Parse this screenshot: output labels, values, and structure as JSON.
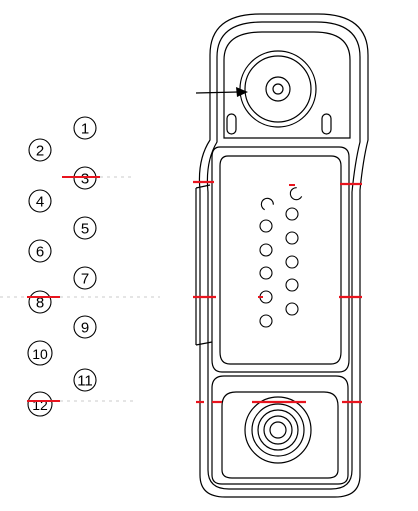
{
  "pin_labels": [
    "1",
    "2",
    "3",
    "4",
    "5",
    "6",
    "7",
    "8",
    "9",
    "10",
    "11",
    "12"
  ],
  "colors": {
    "ink": "#000000",
    "marker": "#e8141e",
    "background": "#ffffff"
  }
}
